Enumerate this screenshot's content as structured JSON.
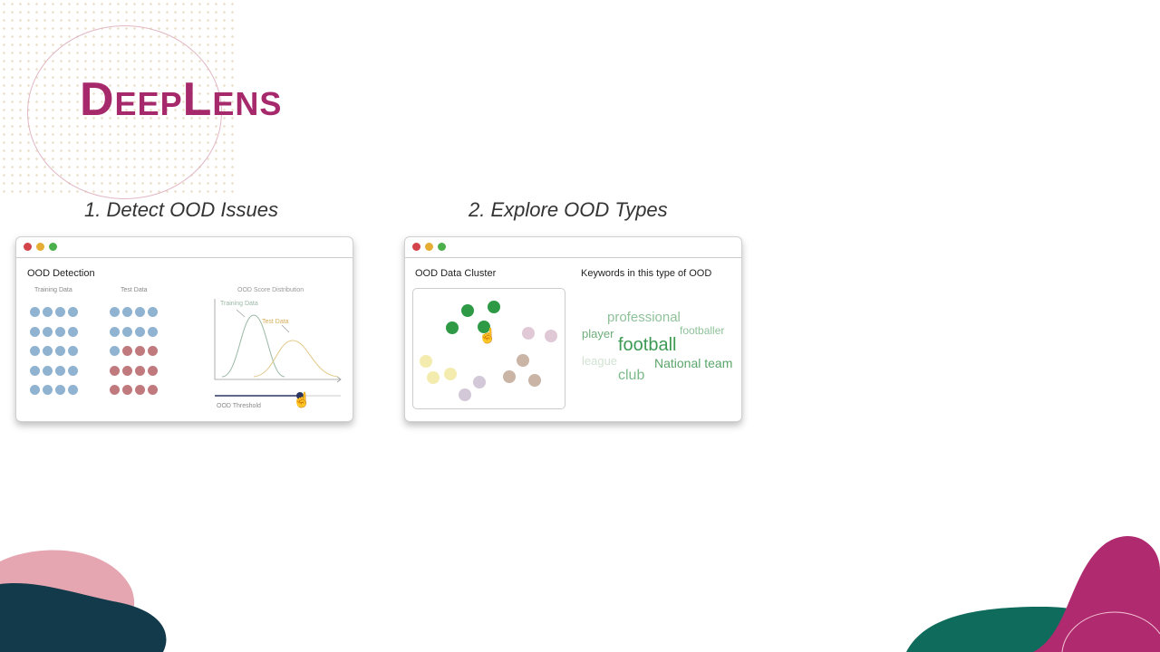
{
  "logo": {
    "text": "DeepLens",
    "color": "#a6296c"
  },
  "steps": [
    {
      "title": "1. Detect OOD Issues"
    },
    {
      "title": "2. Explore OOD Types"
    }
  ],
  "detect": {
    "title": "OOD Detection",
    "training_label": "Training Data",
    "test_label": "Test Data",
    "dist_title": "OOD Score Distribution",
    "curve_training": "Training Data",
    "curve_test": "Test Data",
    "threshold_label": "OOD Threshold",
    "training_grid": [
      [
        0,
        0,
        0,
        0
      ],
      [
        0,
        0,
        0,
        0
      ],
      [
        0,
        0,
        0,
        0
      ],
      [
        0,
        0,
        0,
        0
      ],
      [
        0,
        0,
        0,
        0
      ]
    ],
    "test_grid": [
      [
        0,
        0,
        0,
        0
      ],
      [
        0,
        0,
        0,
        0
      ],
      [
        0,
        1,
        1,
        1
      ],
      [
        1,
        1,
        1,
        1
      ],
      [
        1,
        1,
        1,
        1
      ]
    ],
    "colors": {
      "in": "#8fb3d1",
      "ood": "#c07a7e"
    }
  },
  "explore": {
    "title": "OOD Data Cluster",
    "keywords_title": "Keywords in this type of OOD",
    "keywords": [
      {
        "text": "professional",
        "color": "#8fc29a"
      },
      {
        "text": "player",
        "color": "#6fae7c"
      },
      {
        "text": "footballer",
        "color": "#8fc29a"
      },
      {
        "text": "football",
        "color": "#3d9a55"
      },
      {
        "text": "league",
        "color": "#d2e3d3"
      },
      {
        "text": "National team",
        "color": "#5aa56a"
      },
      {
        "text": "club",
        "color": "#7dba8a"
      }
    ]
  },
  "icons": {
    "cursor": "hand-pointer-icon"
  }
}
